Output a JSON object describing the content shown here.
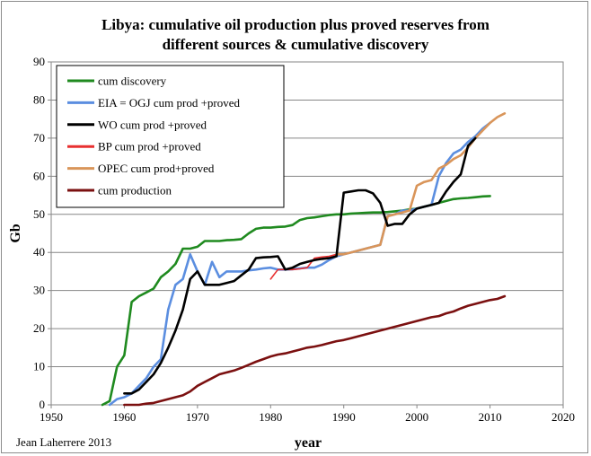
{
  "chart_data": {
    "type": "line",
    "title_line1": "Libya: cumulative oil production plus proved reserves from",
    "title_line2": "different sources & cumulative discovery",
    "xlabel": "year",
    "ylabel": "Gb",
    "xlim": [
      1950,
      2020
    ],
    "ylim": [
      0,
      90
    ],
    "xticks": [
      1950,
      1960,
      1970,
      1980,
      1990,
      2000,
      2010,
      2020
    ],
    "yticks": [
      0,
      10,
      20,
      30,
      40,
      50,
      60,
      70,
      80,
      90
    ],
    "grid": "horizontal",
    "legend_position": "top-left",
    "credit": "Jean Laherrere 2013",
    "series": [
      {
        "name": "cum discovery",
        "color": "#1f8a1f",
        "points": [
          [
            1957,
            0
          ],
          [
            1958,
            1
          ],
          [
            1959,
            10
          ],
          [
            1960,
            13
          ],
          [
            1961,
            27
          ],
          [
            1962,
            28.5
          ],
          [
            1963,
            29.5
          ],
          [
            1964,
            30.5
          ],
          [
            1965,
            33.5
          ],
          [
            1966,
            35
          ],
          [
            1967,
            37
          ],
          [
            1968,
            41
          ],
          [
            1969,
            41
          ],
          [
            1970,
            41.5
          ],
          [
            1971,
            43
          ],
          [
            1972,
            43
          ],
          [
            1973,
            43
          ],
          [
            1974,
            43.2
          ],
          [
            1975,
            43.3
          ],
          [
            1976,
            43.5
          ],
          [
            1977,
            45
          ],
          [
            1978,
            46.2
          ],
          [
            1979,
            46.5
          ],
          [
            1980,
            46.5
          ],
          [
            1981,
            46.7
          ],
          [
            1982,
            46.8
          ],
          [
            1983,
            47.2
          ],
          [
            1984,
            48.5
          ],
          [
            1985,
            49
          ],
          [
            1986,
            49.2
          ],
          [
            1987,
            49.5
          ],
          [
            1988,
            49.8
          ],
          [
            1989,
            50
          ],
          [
            1990,
            50
          ],
          [
            1991,
            50.2
          ],
          [
            1992,
            50.3
          ],
          [
            1993,
            50.4
          ],
          [
            1994,
            50.5
          ],
          [
            1995,
            50.5
          ],
          [
            1996,
            50.6
          ],
          [
            1997,
            50.8
          ],
          [
            1998,
            51
          ],
          [
            1999,
            51.3
          ],
          [
            2000,
            51.5
          ],
          [
            2001,
            52
          ],
          [
            2002,
            52.5
          ],
          [
            2003,
            53
          ],
          [
            2004,
            53.5
          ],
          [
            2005,
            54
          ],
          [
            2006,
            54.2
          ],
          [
            2007,
            54.3
          ],
          [
            2008,
            54.5
          ],
          [
            2009,
            54.7
          ],
          [
            2010,
            54.8
          ]
        ]
      },
      {
        "name": "EIA = OGJ  cum prod +proved",
        "color": "#5b8ee0",
        "points": [
          [
            1958,
            0
          ],
          [
            1959,
            1.5
          ],
          [
            1960,
            2
          ],
          [
            1961,
            3
          ],
          [
            1962,
            5
          ],
          [
            1963,
            7
          ],
          [
            1964,
            10
          ],
          [
            1965,
            12
          ],
          [
            1966,
            25
          ],
          [
            1967,
            31.5
          ],
          [
            1968,
            33
          ],
          [
            1969,
            39.5
          ],
          [
            1970,
            35
          ],
          [
            1971,
            31.5
          ],
          [
            1972,
            37.5
          ],
          [
            1973,
            33.5
          ],
          [
            1974,
            35
          ],
          [
            1975,
            35
          ],
          [
            1976,
            35
          ],
          [
            1977,
            35.3
          ],
          [
            1978,
            35.5
          ],
          [
            1979,
            35.8
          ],
          [
            1980,
            36
          ],
          [
            1981,
            35.5
          ],
          [
            1982,
            35.5
          ],
          [
            1983,
            35.6
          ],
          [
            1984,
            35.8
          ],
          [
            1985,
            36
          ],
          [
            1986,
            36
          ],
          [
            1987,
            36.8
          ],
          [
            1988,
            38
          ],
          [
            1989,
            39
          ],
          [
            1990,
            39.5
          ],
          [
            1991,
            40
          ],
          [
            1992,
            40.5
          ],
          [
            1993,
            41
          ],
          [
            1994,
            41.5
          ],
          [
            1995,
            42
          ],
          [
            1996,
            49.5
          ],
          [
            1997,
            50
          ],
          [
            1998,
            51
          ],
          [
            1999,
            51
          ],
          [
            2000,
            51.5
          ],
          [
            2001,
            52
          ],
          [
            2002,
            52.5
          ],
          [
            2003,
            60
          ],
          [
            2004,
            63.5
          ],
          [
            2005,
            66
          ],
          [
            2006,
            67
          ],
          [
            2007,
            69
          ],
          [
            2008,
            70.5
          ],
          [
            2009,
            72.5
          ],
          [
            2010,
            74
          ]
        ]
      },
      {
        "name": "WO cum prod +proved",
        "color": "#000000",
        "points": [
          [
            1960,
            3
          ],
          [
            1961,
            3
          ],
          [
            1962,
            4
          ],
          [
            1963,
            6
          ],
          [
            1964,
            8
          ],
          [
            1965,
            11
          ],
          [
            1966,
            15
          ],
          [
            1967,
            19.5
          ],
          [
            1968,
            25
          ],
          [
            1969,
            33
          ],
          [
            1970,
            35
          ],
          [
            1971,
            31.5
          ],
          [
            1972,
            31.5
          ],
          [
            1973,
            31.5
          ],
          [
            1974,
            32
          ],
          [
            1975,
            32.5
          ],
          [
            1976,
            34
          ],
          [
            1977,
            35.5
          ],
          [
            1978,
            38.5
          ],
          [
            1979,
            38.7
          ],
          [
            1980,
            38.8
          ],
          [
            1981,
            39
          ],
          [
            1982,
            35.5
          ],
          [
            1983,
            36
          ],
          [
            1984,
            37
          ],
          [
            1985,
            37.5
          ],
          [
            1986,
            38
          ],
          [
            1987,
            38.3
          ],
          [
            1988,
            38.5
          ],
          [
            1989,
            39
          ],
          [
            1990,
            55.7
          ],
          [
            1991,
            56
          ],
          [
            1992,
            56.3
          ],
          [
            1993,
            56.3
          ],
          [
            1994,
            55.5
          ],
          [
            1995,
            53
          ],
          [
            1996,
            47
          ],
          [
            1997,
            47.5
          ],
          [
            1998,
            47.5
          ],
          [
            1999,
            50
          ],
          [
            2000,
            51.5
          ],
          [
            2001,
            52
          ],
          [
            2002,
            52.5
          ],
          [
            2003,
            53
          ],
          [
            2004,
            56
          ],
          [
            2005,
            58.5
          ],
          [
            2006,
            60.5
          ],
          [
            2007,
            68
          ],
          [
            2008,
            70
          ]
        ]
      },
      {
        "name": "BP  cum prod +proved",
        "color": "#e83030",
        "points": [
          [
            1980,
            33
          ],
          [
            1981,
            35.5
          ],
          [
            1982,
            35.5
          ],
          [
            1983,
            35.5
          ],
          [
            1984,
            35.7
          ],
          [
            1985,
            36
          ],
          [
            1986,
            38.5
          ],
          [
            1987,
            38.8
          ],
          [
            1988,
            39
          ],
          [
            1989,
            39.5
          ]
        ]
      },
      {
        "name": "OPEC cum prod+proved",
        "color": "#d9955a",
        "points": [
          [
            1989,
            39.5
          ],
          [
            1990,
            39.5
          ],
          [
            1991,
            40
          ],
          [
            1992,
            40.5
          ],
          [
            1993,
            41
          ],
          [
            1994,
            41.5
          ],
          [
            1995,
            42
          ],
          [
            1996,
            49.5
          ],
          [
            1997,
            50
          ],
          [
            1998,
            50.5
          ],
          [
            1999,
            51
          ],
          [
            2000,
            57.5
          ],
          [
            2001,
            58.5
          ],
          [
            2002,
            59
          ],
          [
            2003,
            62
          ],
          [
            2004,
            63
          ],
          [
            2005,
            64.5
          ],
          [
            2006,
            65.5
          ],
          [
            2007,
            67.5
          ],
          [
            2008,
            70
          ],
          [
            2009,
            72
          ],
          [
            2010,
            74
          ],
          [
            2011,
            75.5
          ],
          [
            2012,
            76.5
          ]
        ]
      },
      {
        "name": "cum production",
        "color": "#7b1010",
        "points": [
          [
            1960,
            0
          ],
          [
            1961,
            0
          ],
          [
            1962,
            0
          ],
          [
            1963,
            0.3
          ],
          [
            1964,
            0.5
          ],
          [
            1965,
            1
          ],
          [
            1966,
            1.5
          ],
          [
            1967,
            2
          ],
          [
            1968,
            2.5
          ],
          [
            1969,
            3.5
          ],
          [
            1970,
            5
          ],
          [
            1971,
            6
          ],
          [
            1972,
            7
          ],
          [
            1973,
            8
          ],
          [
            1974,
            8.5
          ],
          [
            1975,
            9
          ],
          [
            1976,
            9.7
          ],
          [
            1977,
            10.5
          ],
          [
            1978,
            11.3
          ],
          [
            1979,
            12
          ],
          [
            1980,
            12.7
          ],
          [
            1981,
            13.2
          ],
          [
            1982,
            13.5
          ],
          [
            1983,
            14
          ],
          [
            1984,
            14.5
          ],
          [
            1985,
            15
          ],
          [
            1986,
            15.3
          ],
          [
            1987,
            15.7
          ],
          [
            1988,
            16.2
          ],
          [
            1989,
            16.7
          ],
          [
            1990,
            17
          ],
          [
            1991,
            17.5
          ],
          [
            1992,
            18
          ],
          [
            1993,
            18.5
          ],
          [
            1994,
            19
          ],
          [
            1995,
            19.5
          ],
          [
            1996,
            20
          ],
          [
            1997,
            20.5
          ],
          [
            1998,
            21
          ],
          [
            1999,
            21.5
          ],
          [
            2000,
            22
          ],
          [
            2001,
            22.5
          ],
          [
            2002,
            23
          ],
          [
            2003,
            23.3
          ],
          [
            2004,
            24
          ],
          [
            2005,
            24.5
          ],
          [
            2006,
            25.3
          ],
          [
            2007,
            26
          ],
          [
            2008,
            26.5
          ],
          [
            2009,
            27
          ],
          [
            2010,
            27.5
          ],
          [
            2011,
            27.8
          ],
          [
            2012,
            28.5
          ]
        ]
      }
    ]
  }
}
